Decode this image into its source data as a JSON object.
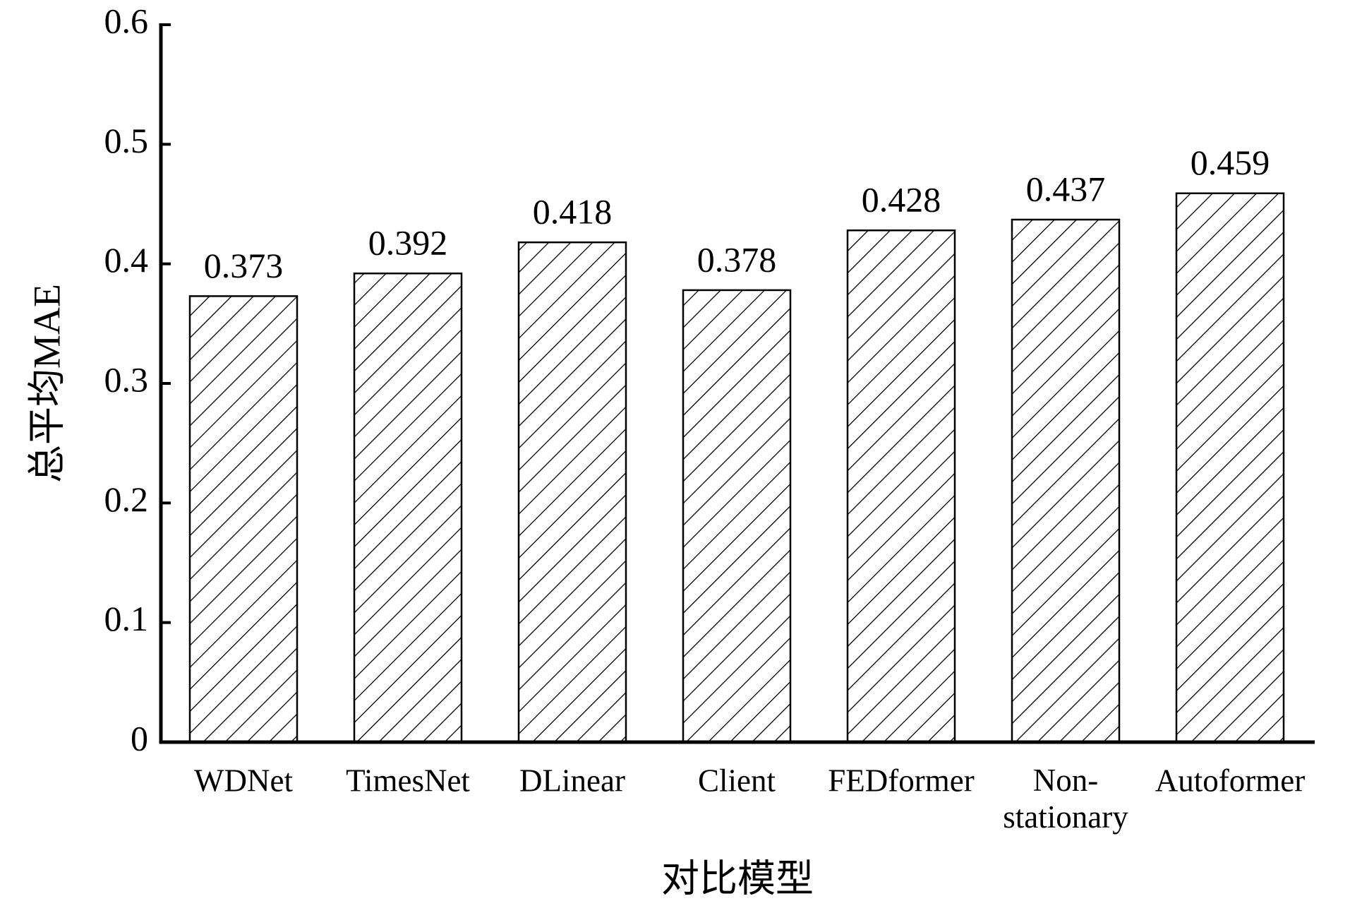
{
  "chart_data": {
    "type": "bar",
    "x_label": "对比模型",
    "y_label": "总平均MAE",
    "categories": [
      "WDNet",
      "TimesNet",
      "DLinear",
      "Client",
      "FEDformer",
      "Non-stationary",
      "Autoformer"
    ],
    "values": [
      0.373,
      0.392,
      0.418,
      0.378,
      0.428,
      0.437,
      0.459
    ],
    "color": "#000000",
    "hatch": "\\\\",
    "ylim": [
      0,
      0.6
    ],
    "yticks": [
      0,
      0.1,
      0.2,
      0.3,
      0.4,
      0.5,
      0.6
    ],
    "grid": false
  }
}
